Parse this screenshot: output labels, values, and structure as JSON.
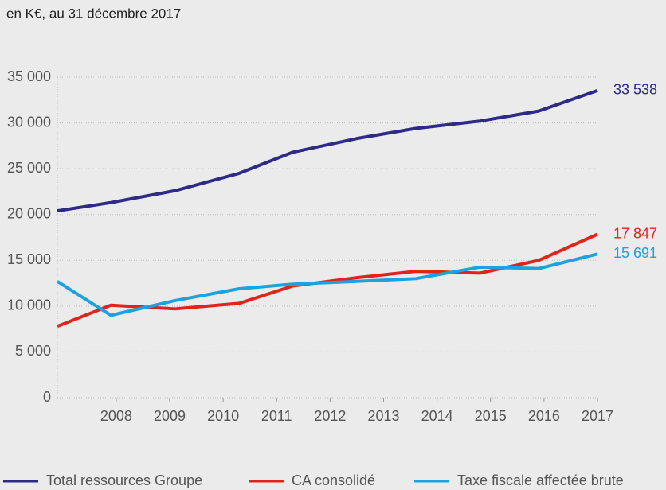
{
  "chart_data": {
    "type": "line",
    "subtitle": "en K€, au 31 décembre 2017",
    "x": [
      2006.9,
      2007.9,
      2009.1,
      2010.3,
      2011.3,
      2012.5,
      2013.6,
      2014.8,
      2015.9,
      2017
    ],
    "xlim": [
      2006.9,
      2017
    ],
    "xticks": [
      2008,
      2009,
      2010,
      2011,
      2012,
      2013,
      2014,
      2015,
      2016,
      2017
    ],
    "ylim": [
      0,
      35000
    ],
    "yticks": [
      {
        "value": 0,
        "label": "0"
      },
      {
        "value": 5000,
        "label": "5 000"
      },
      {
        "value": 10000,
        "label": "10 000"
      },
      {
        "value": 15000,
        "label": "15 000"
      },
      {
        "value": 20000,
        "label": "20 000"
      },
      {
        "value": 25000,
        "label": "25 000"
      },
      {
        "value": 30000,
        "label": "30 000"
      },
      {
        "value": 35000,
        "label": "35 000"
      }
    ],
    "grid": true,
    "legend": "bottom",
    "series": [
      {
        "name": "Total ressources Groupe",
        "color": "#2e2a85",
        "values": [
          20400,
          21300,
          22600,
          24500,
          26800,
          28300,
          29400,
          30200,
          31300,
          33538
        ],
        "value_labels": [
          null,
          null,
          null,
          null,
          null,
          null,
          null,
          null,
          null,
          "33 538"
        ]
      },
      {
        "name": "CA consolidé",
        "color": "#e2231a",
        "values": [
          7800,
          10100,
          9700,
          10300,
          12200,
          13100,
          13800,
          13600,
          15000,
          17847
        ],
        "value_labels": [
          null,
          null,
          null,
          null,
          null,
          null,
          null,
          null,
          null,
          "17 847"
        ]
      },
      {
        "name": "Taxe fiscale affectée brute",
        "color": "#1aa3e0",
        "values": [
          12700,
          9000,
          10600,
          11900,
          12400,
          12700,
          13000,
          14250,
          14100,
          15691
        ],
        "value_labels": [
          null,
          null,
          null,
          null,
          null,
          null,
          null,
          null,
          null,
          "15 691"
        ]
      }
    ]
  }
}
